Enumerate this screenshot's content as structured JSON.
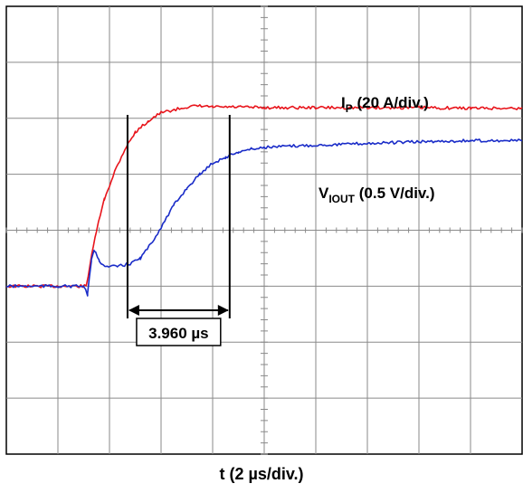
{
  "chart_data": {
    "type": "line",
    "title": "",
    "xlabel": "t (2 µs/div.)",
    "ylabel": "",
    "x_divisions": 10,
    "y_divisions": 8,
    "x_unit": "µs",
    "x_per_div": 2,
    "xlim": [
      0,
      20
    ],
    "ylim_div": [
      -4,
      4
    ],
    "grid": true,
    "series": [
      {
        "name": "IP (20 A/div.)",
        "label_main": "I",
        "label_sub": "P",
        "label_rest": " (20 A/div.)",
        "scale": "20 A/div.",
        "color": "#e8141b",
        "x": [
          0,
          3.1,
          3.25,
          3.5,
          3.8,
          4.2,
          4.6,
          5.0,
          5.5,
          6.0,
          6.5,
          7.0,
          7.5,
          8.0,
          9.0,
          10.0,
          12.0,
          14.0,
          16.0,
          18.0,
          20.0
        ],
        "y_div": [
          -1.0,
          -1.0,
          -0.6,
          0.0,
          0.55,
          1.05,
          1.45,
          1.75,
          1.95,
          2.1,
          2.15,
          2.2,
          2.22,
          2.2,
          2.2,
          2.19,
          2.19,
          2.19,
          2.19,
          2.18,
          2.18
        ]
      },
      {
        "name": "VIOUT (0.5 V/div.)",
        "label_main": "V",
        "label_sub": "IOUT",
        "label_rest": " (0.5 V/div.)",
        "scale": "0.5 V/div.",
        "color": "#1a2cc8",
        "x": [
          0,
          2.0,
          3.0,
          3.15,
          3.3,
          3.4,
          3.6,
          3.9,
          4.3,
          4.8,
          5.2,
          5.6,
          6.0,
          6.5,
          7.0,
          7.5,
          8.0,
          8.5,
          9.0,
          9.5,
          10.0,
          11.0,
          12.0,
          14.0,
          16.0,
          18.0,
          20.0
        ],
        "y_div": [
          -1.0,
          -1.0,
          -1.0,
          -1.15,
          -0.55,
          -0.35,
          -0.55,
          -0.65,
          -0.65,
          -0.6,
          -0.5,
          -0.25,
          0.05,
          0.45,
          0.75,
          1.0,
          1.2,
          1.3,
          1.4,
          1.45,
          1.48,
          1.5,
          1.52,
          1.55,
          1.58,
          1.6,
          1.6
        ]
      }
    ],
    "annotation": {
      "text": "3.960 µs",
      "t_start": 4.7,
      "t_end": 8.66
    }
  }
}
